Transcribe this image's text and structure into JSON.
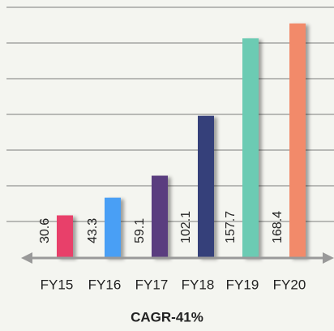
{
  "chart_data": {
    "type": "bar",
    "categories": [
      "FY15",
      "FY16",
      "FY17",
      "FY18",
      "FY19",
      "FY20"
    ],
    "values": [
      30.6,
      43.3,
      59.1,
      102.1,
      157.7,
      168.4
    ],
    "colors": [
      "#e8416a",
      "#4a9ff5",
      "#5a3d7f",
      "#343f7a",
      "#6ccbb3",
      "#f28a6a"
    ],
    "ylim": [
      0,
      180
    ],
    "xlabel": "CAGR-41%"
  }
}
